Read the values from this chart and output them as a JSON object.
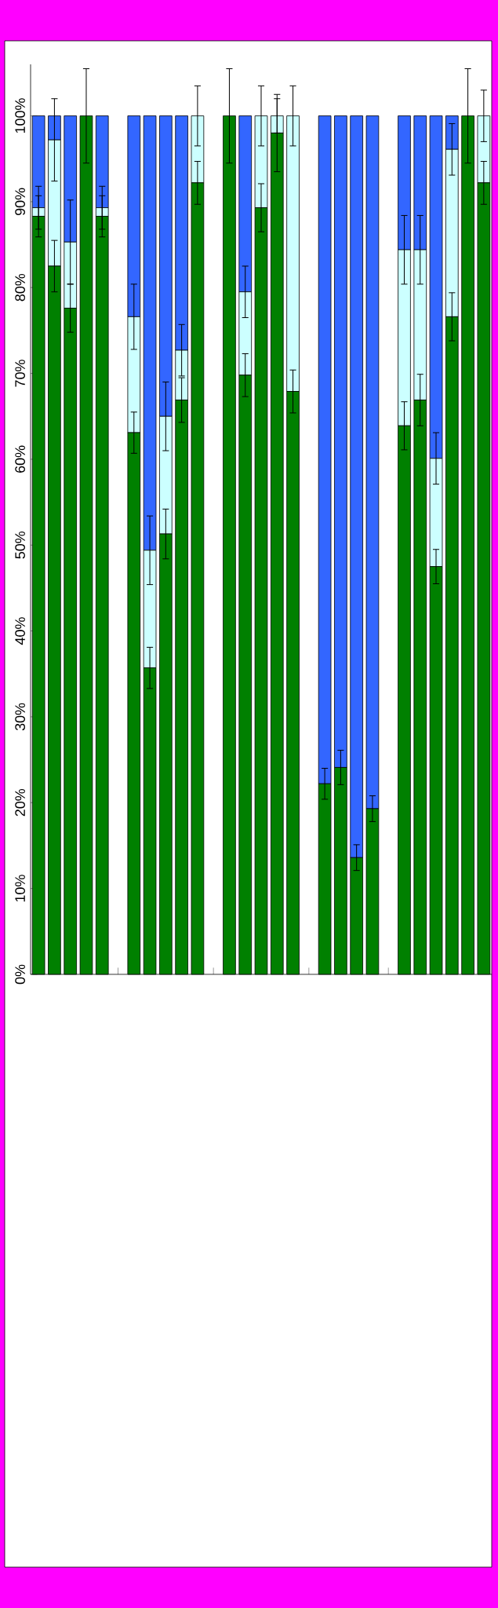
{
  "chart_data": {
    "type": "bar",
    "stacked": true,
    "categories": [
      null,
      null,
      null,
      null,
      null,
      null,
      null,
      null,
      null,
      null,
      null,
      null,
      null,
      null,
      null,
      null,
      null,
      null,
      null,
      null,
      null,
      null,
      null,
      null,
      null,
      null,
      null,
      null,
      null
    ],
    "series": [
      {
        "color": "#008000",
        "values": [
          88.3,
          82.5,
          77.6,
          100,
          88.3,
          null,
          63.1,
          35.7,
          51.3,
          66.9,
          92.2,
          null,
          100,
          69.8,
          89.3,
          98.0,
          67.9,
          null,
          22.2,
          24.1,
          13.6,
          19.3,
          null,
          63.9,
          66.9,
          47.5,
          76.6,
          100,
          92.2
        ],
        "errors": [
          2.4,
          3,
          2.8,
          5.5,
          2.4,
          null,
          2.4,
          2.4,
          2.9,
          2.6,
          2.5,
          null,
          5.5,
          2.5,
          2.8,
          4.5,
          2.5,
          null,
          1.8,
          2,
          1.5,
          1.5,
          null,
          2.8,
          3,
          2,
          2.8,
          5.5,
          2.5
        ]
      },
      {
        "color": "#ccffff",
        "values": [
          1.0,
          14.7,
          7.7,
          0,
          1.0,
          null,
          13.5,
          13.7,
          13.7,
          5.8,
          7.8,
          null,
          0,
          9.7,
          10.7,
          2.0,
          32.1,
          null,
          0,
          0,
          0,
          0,
          null,
          20.5,
          17.5,
          12.6,
          19.5,
          0,
          7.8
        ],
        "errors": [
          2.5,
          4.8,
          4.9,
          null,
          2.5,
          null,
          3.8,
          4,
          4,
          3,
          3.5,
          null,
          null,
          3,
          3.5,
          2,
          3.5,
          null,
          null,
          null,
          null,
          null,
          null,
          4,
          4,
          3,
          3,
          null,
          3
        ]
      },
      {
        "color": "#3366ff",
        "values": [
          10.7,
          2.8,
          14.7,
          0,
          10.7,
          null,
          23.4,
          50.6,
          35.0,
          27.3,
          0,
          null,
          0,
          20.5,
          0,
          0,
          0,
          null,
          77.8,
          75.9,
          86.4,
          80.7,
          null,
          15.6,
          15.6,
          39.9,
          3.9,
          0,
          0
        ]
      }
    ],
    "ylim": [
      0,
      106
    ],
    "yticks": [
      {
        "value": 0,
        "label": "0%"
      },
      {
        "value": 10,
        "label": "10%"
      },
      {
        "value": 20,
        "label": "20%"
      },
      {
        "value": 30,
        "label": "30%"
      },
      {
        "value": 40,
        "label": "40%"
      },
      {
        "value": 50,
        "label": "50%"
      },
      {
        "value": 60,
        "label": "60%"
      },
      {
        "value": 70,
        "label": "70%"
      },
      {
        "value": 80,
        "label": "80%"
      },
      {
        "value": 90,
        "label": "90%"
      },
      {
        "value": 100,
        "label": "100%"
      }
    ]
  }
}
